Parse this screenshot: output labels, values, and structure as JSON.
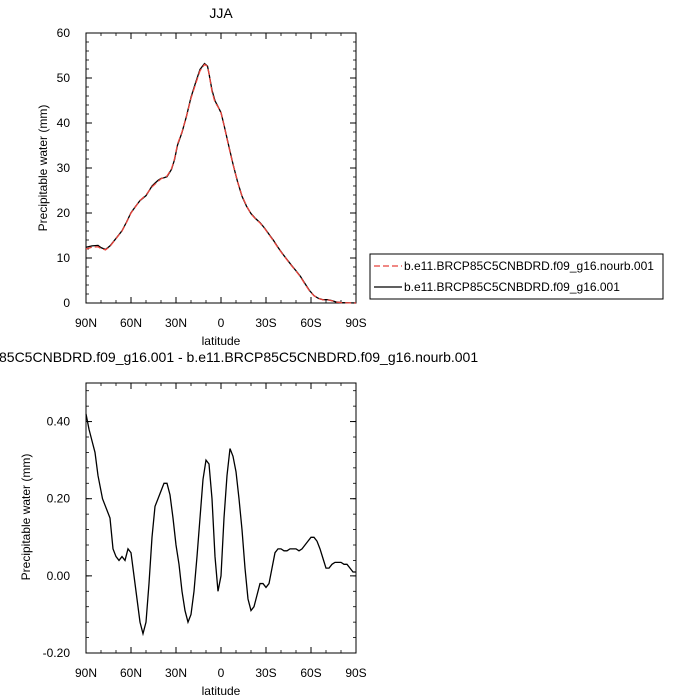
{
  "chart_data": [
    {
      "type": "line",
      "title": "JJA",
      "xlabel": "latitude",
      "ylabel": "Precipitable water (mm)",
      "x_ticks": [
        "90N",
        "60N",
        "30N",
        "0",
        "30S",
        "60S",
        "90S"
      ],
      "y_ticks": [
        "0",
        "10",
        "20",
        "30",
        "40",
        "50",
        "60"
      ],
      "xlim": [
        90,
        -90
      ],
      "ylim": [
        0,
        60
      ],
      "grid": false,
      "legend_position": "right",
      "series": [
        {
          "name": "b.e11.BRCP85C5CNBDRD.f09_g16.nourb.001",
          "color": "#e8423a",
          "dash": "dashed",
          "x": [
            90,
            86,
            82,
            80,
            77,
            74,
            70,
            66,
            63,
            60,
            57,
            54,
            50,
            46,
            44,
            42,
            40,
            38,
            36,
            33,
            31,
            29,
            26,
            23,
            20,
            17,
            14,
            11,
            9,
            8,
            6,
            4,
            2,
            0,
            -2,
            -5,
            -8,
            -11,
            -14,
            -17,
            -20,
            -23,
            -26,
            -29,
            -32,
            -35,
            -38,
            -41,
            -44,
            -47,
            -50,
            -53,
            -56,
            -59,
            -62,
            -65,
            -68,
            -71,
            -74,
            -77,
            -80,
            -83,
            -86,
            -90
          ],
          "y": [
            12.0,
            12.4,
            12.5,
            12.1,
            11.8,
            12.6,
            14.3,
            16.0,
            17.9,
            20.0,
            21.4,
            22.8,
            24.0,
            25.8,
            26.4,
            27.0,
            27.6,
            27.9,
            28.2,
            29.8,
            32.0,
            35.3,
            38.0,
            41.5,
            45.5,
            48.6,
            51.6,
            53.0,
            52.6,
            51.0,
            47.0,
            44.6,
            43.6,
            42.3,
            39.5,
            35.0,
            30.8,
            27.0,
            23.8,
            21.6,
            19.8,
            18.7,
            17.8,
            16.6,
            15.2,
            13.8,
            12.3,
            10.9,
            9.6,
            8.3,
            7.1,
            5.8,
            4.2,
            2.7,
            1.6,
            1.0,
            0.7,
            0.7,
            0.5,
            0.2,
            0.1,
            0.05,
            0.02,
            0.0
          ]
        },
        {
          "name": "b.e11.BRCP85C5CNBDRD.f09_g16.001",
          "color": "#000000",
          "dash": "solid",
          "x": [
            90,
            86,
            82,
            80,
            77,
            74,
            70,
            66,
            63,
            60,
            57,
            54,
            50,
            46,
            44,
            42,
            40,
            38,
            36,
            33,
            31,
            29,
            26,
            23,
            20,
            17,
            14,
            11,
            9,
            8,
            6,
            4,
            2,
            0,
            -2,
            -5,
            -8,
            -11,
            -14,
            -17,
            -20,
            -23,
            -26,
            -29,
            -32,
            -35,
            -38,
            -41,
            -44,
            -47,
            -50,
            -53,
            -56,
            -59,
            -62,
            -65,
            -68,
            -71,
            -74,
            -77,
            -80,
            -83,
            -86,
            -90
          ],
          "y": [
            12.4,
            12.7,
            12.8,
            12.3,
            11.9,
            12.7,
            14.35,
            16.05,
            17.97,
            20.07,
            21.45,
            22.75,
            23.85,
            25.99,
            26.64,
            27.25,
            27.67,
            27.83,
            28.06,
            29.7,
            31.83,
            35.08,
            37.9,
            41.53,
            45.72,
            48.9,
            51.9,
            53.2,
            52.63,
            50.96,
            47.3,
            44.93,
            43.65,
            42.3,
            39.55,
            35.17,
            30.86,
            27.0,
            23.71,
            21.51,
            19.87,
            18.77,
            17.87,
            16.67,
            15.27,
            13.92,
            12.37,
            10.96,
            9.67,
            8.37,
            7.17,
            5.89,
            4.3,
            2.77,
            1.63,
            1.03,
            0.73,
            0.73,
            0.52,
            0.21,
            0.11,
            0.06,
            0.03,
            0.01
          ]
        }
      ]
    },
    {
      "type": "line",
      "title": "85C5CNBDRD.f09_g16.001 - b.e11.BRCP85C5CNBDRD.f09_g16.nourb.001",
      "xlabel": "latitude",
      "ylabel": "Precipitable water (mm)",
      "x_ticks": [
        "90N",
        "60N",
        "30N",
        "0",
        "30S",
        "60S",
        "90S"
      ],
      "y_ticks": [
        "-0.20",
        "0.00",
        "0.20",
        "0.40"
      ],
      "xlim": [
        90,
        -90
      ],
      "ylim": [
        -0.2,
        0.5
      ],
      "grid": false,
      "series": [
        {
          "color": "#000000",
          "x": [
            90,
            88,
            86,
            84,
            82,
            79,
            77,
            74,
            72,
            70,
            68,
            66,
            64,
            62,
            60,
            58,
            56,
            54,
            52,
            50,
            48,
            46,
            44,
            42,
            40,
            38,
            36,
            34,
            32,
            30,
            28,
            26,
            24,
            22,
            20,
            18,
            16,
            14,
            12,
            10,
            8,
            6,
            4,
            2,
            0,
            -2,
            -4,
            -6,
            -8,
            -10,
            -12,
            -14,
            -16,
            -18,
            -20,
            -22,
            -24,
            -26,
            -28,
            -30,
            -32,
            -34,
            -36,
            -38,
            -40,
            -42,
            -44,
            -46,
            -48,
            -50,
            -52,
            -54,
            -56,
            -58,
            -60,
            -62,
            -64,
            -66,
            -68,
            -70,
            -72,
            -74,
            -76,
            -78,
            -80,
            -82,
            -84,
            -86,
            -88,
            -90
          ],
          "y": [
            0.42,
            0.38,
            0.35,
            0.32,
            0.26,
            0.2,
            0.18,
            0.15,
            0.07,
            0.05,
            0.04,
            0.05,
            0.04,
            0.07,
            0.06,
            0.0,
            -0.06,
            -0.12,
            -0.15,
            -0.12,
            -0.02,
            0.1,
            0.18,
            0.2,
            0.22,
            0.24,
            0.24,
            0.21,
            0.15,
            0.08,
            0.03,
            -0.04,
            -0.09,
            -0.12,
            -0.1,
            -0.04,
            0.05,
            0.15,
            0.25,
            0.3,
            0.29,
            0.2,
            0.05,
            -0.04,
            0.0,
            0.15,
            0.26,
            0.33,
            0.31,
            0.27,
            0.2,
            0.12,
            0.02,
            -0.06,
            -0.09,
            -0.08,
            -0.05,
            -0.02,
            -0.02,
            -0.03,
            -0.02,
            0.02,
            0.06,
            0.07,
            0.07,
            0.065,
            0.065,
            0.07,
            0.07,
            0.07,
            0.065,
            0.07,
            0.08,
            0.09,
            0.1,
            0.1,
            0.09,
            0.07,
            0.045,
            0.02,
            0.02,
            0.03,
            0.035,
            0.035,
            0.035,
            0.03,
            0.03,
            0.02,
            0.01,
            0.01
          ]
        }
      ]
    }
  ]
}
